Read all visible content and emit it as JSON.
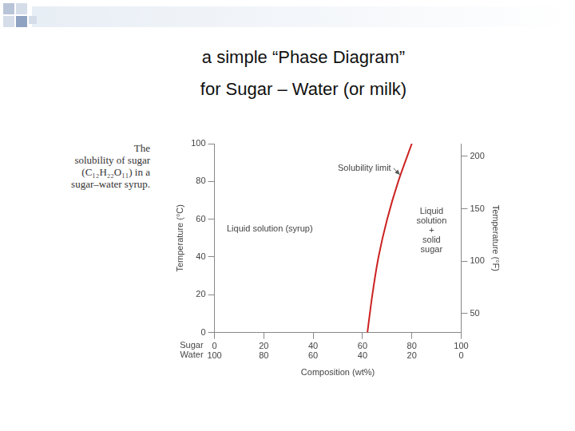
{
  "header": {
    "title": [
      "a simple “Phase Diagram”",
      "for Sugar – Water (or milk)"
    ]
  },
  "chart_data": {
    "type": "line",
    "caption": [
      "The",
      "solubility of sugar",
      "(C₁₂H₂₂O₁₁) in a",
      "sugar–water syrup."
    ],
    "x": [
      62,
      64,
      66.5,
      70,
      74.5,
      80
    ],
    "values": [
      0,
      20,
      40,
      60,
      80,
      100
    ],
    "color": "#cc2222",
    "line_style": "solid",
    "xlabel": "Composition (wt%)",
    "ylabel": "Temperature (°C)",
    "y2label": "Temperature (°F)",
    "xlim": [
      0,
      100
    ],
    "xticks": [
      0,
      20,
      40,
      60,
      80,
      100
    ],
    "xtick_rows": [
      {
        "name": "Sugar",
        "labels": [
          0,
          20,
          40,
          60,
          80,
          100
        ]
      },
      {
        "name": "Water",
        "labels": [
          100,
          80,
          60,
          40,
          20,
          0
        ]
      }
    ],
    "ylim": [
      0,
      100
    ],
    "yticks": [
      0,
      20,
      40,
      60,
      80,
      100
    ],
    "y2lim": [
      32,
      212
    ],
    "y2ticks": [
      50,
      100,
      150,
      200
    ],
    "grid": false,
    "annotations": [
      "Solubility limit",
      "Liquid solution (syrup)",
      "Liquid solution + solid sugar"
    ]
  }
}
